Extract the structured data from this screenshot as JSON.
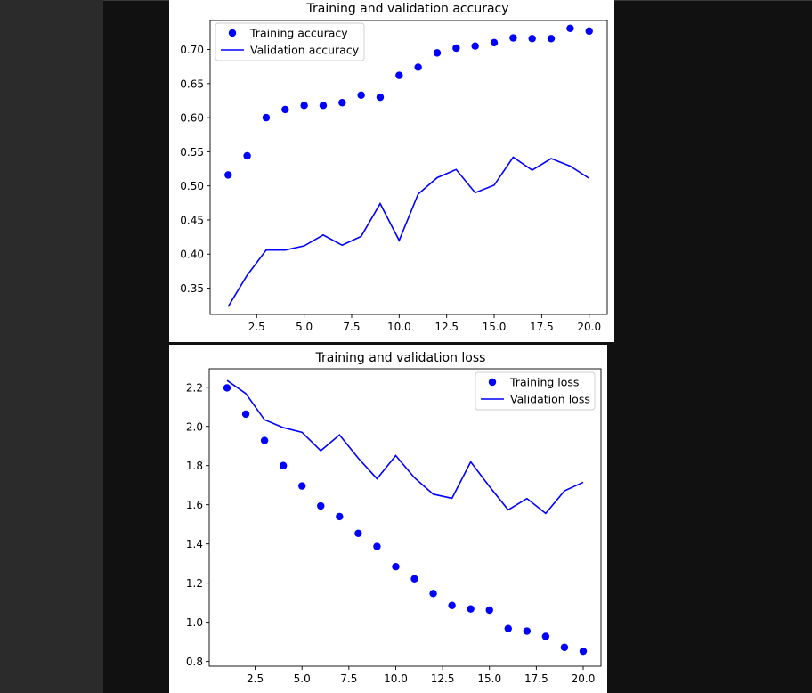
{
  "chart_data": [
    {
      "type": "line",
      "title": "Training and validation accuracy",
      "xlabel": "",
      "ylabel": "",
      "xlim": [
        0.05,
        20.95
      ],
      "ylim": [
        0.3115,
        0.7425
      ],
      "x_ticks": [
        2.5,
        5.0,
        7.5,
        10.0,
        12.5,
        15.0,
        17.5,
        20.0
      ],
      "x_tick_labels": [
        "2.5",
        "5.0",
        "7.5",
        "10.0",
        "12.5",
        "15.0",
        "17.5",
        "20.0"
      ],
      "y_ticks": [
        0.35,
        0.4,
        0.45,
        0.5,
        0.55,
        0.6,
        0.65,
        0.7
      ],
      "y_tick_labels": [
        "0.35",
        "0.40",
        "0.45",
        "0.50",
        "0.55",
        "0.60",
        "0.65",
        "0.70"
      ],
      "legend_position": "top-left",
      "grid": false,
      "x": [
        1,
        2,
        3,
        4,
        5,
        6,
        7,
        8,
        9,
        10,
        11,
        12,
        13,
        14,
        15,
        16,
        17,
        18,
        19,
        20
      ],
      "series": [
        {
          "name": "Training accuracy",
          "style": "points",
          "color": "#0000ff",
          "values": [
            0.516,
            0.544,
            0.6,
            0.612,
            0.618,
            0.618,
            0.622,
            0.633,
            0.63,
            0.662,
            0.674,
            0.695,
            0.702,
            0.705,
            0.71,
            0.717,
            0.716,
            0.716,
            0.731,
            0.727
          ]
        },
        {
          "name": "Validation accuracy",
          "style": "line",
          "color": "#0000ff",
          "values": [
            0.323,
            0.369,
            0.406,
            0.406,
            0.412,
            0.428,
            0.413,
            0.426,
            0.474,
            0.42,
            0.488,
            0.512,
            0.524,
            0.49,
            0.501,
            0.542,
            0.523,
            0.54,
            0.529,
            0.511
          ]
        }
      ]
    },
    {
      "type": "line",
      "title": "Training and validation loss",
      "xlabel": "",
      "ylabel": "",
      "xlim": [
        0.05,
        20.95
      ],
      "ylim": [
        0.7755,
        2.2945
      ],
      "x_ticks": [
        2.5,
        5.0,
        7.5,
        10.0,
        12.5,
        15.0,
        17.5,
        20.0
      ],
      "x_tick_labels": [
        "2.5",
        "5.0",
        "7.5",
        "10.0",
        "12.5",
        "15.0",
        "17.5",
        "20.0"
      ],
      "y_ticks": [
        0.8,
        1.0,
        1.2,
        1.4,
        1.6,
        1.8,
        2.0,
        2.2
      ],
      "y_tick_labels": [
        "0.8",
        "1.0",
        "1.2",
        "1.4",
        "1.6",
        "1.8",
        "2.0",
        "2.2"
      ],
      "legend_position": "top-right",
      "grid": false,
      "x": [
        1,
        2,
        3,
        4,
        5,
        6,
        7,
        8,
        9,
        10,
        11,
        12,
        13,
        14,
        15,
        16,
        17,
        18,
        19,
        20
      ],
      "series": [
        {
          "name": "Training loss",
          "style": "points",
          "color": "#0000ff",
          "values": [
            2.197,
            2.063,
            1.928,
            1.8,
            1.696,
            1.594,
            1.54,
            1.454,
            1.387,
            1.284,
            1.222,
            1.147,
            1.086,
            1.068,
            1.062,
            0.968,
            0.955,
            0.928,
            0.872,
            0.852
          ]
        },
        {
          "name": "Validation loss",
          "style": "line",
          "color": "#0000ff",
          "values": [
            2.235,
            2.168,
            2.034,
            1.994,
            1.97,
            1.876,
            1.957,
            1.838,
            1.733,
            1.851,
            1.738,
            1.654,
            1.633,
            1.819,
            1.693,
            1.574,
            1.632,
            1.556,
            1.671,
            1.715
          ]
        }
      ]
    }
  ]
}
